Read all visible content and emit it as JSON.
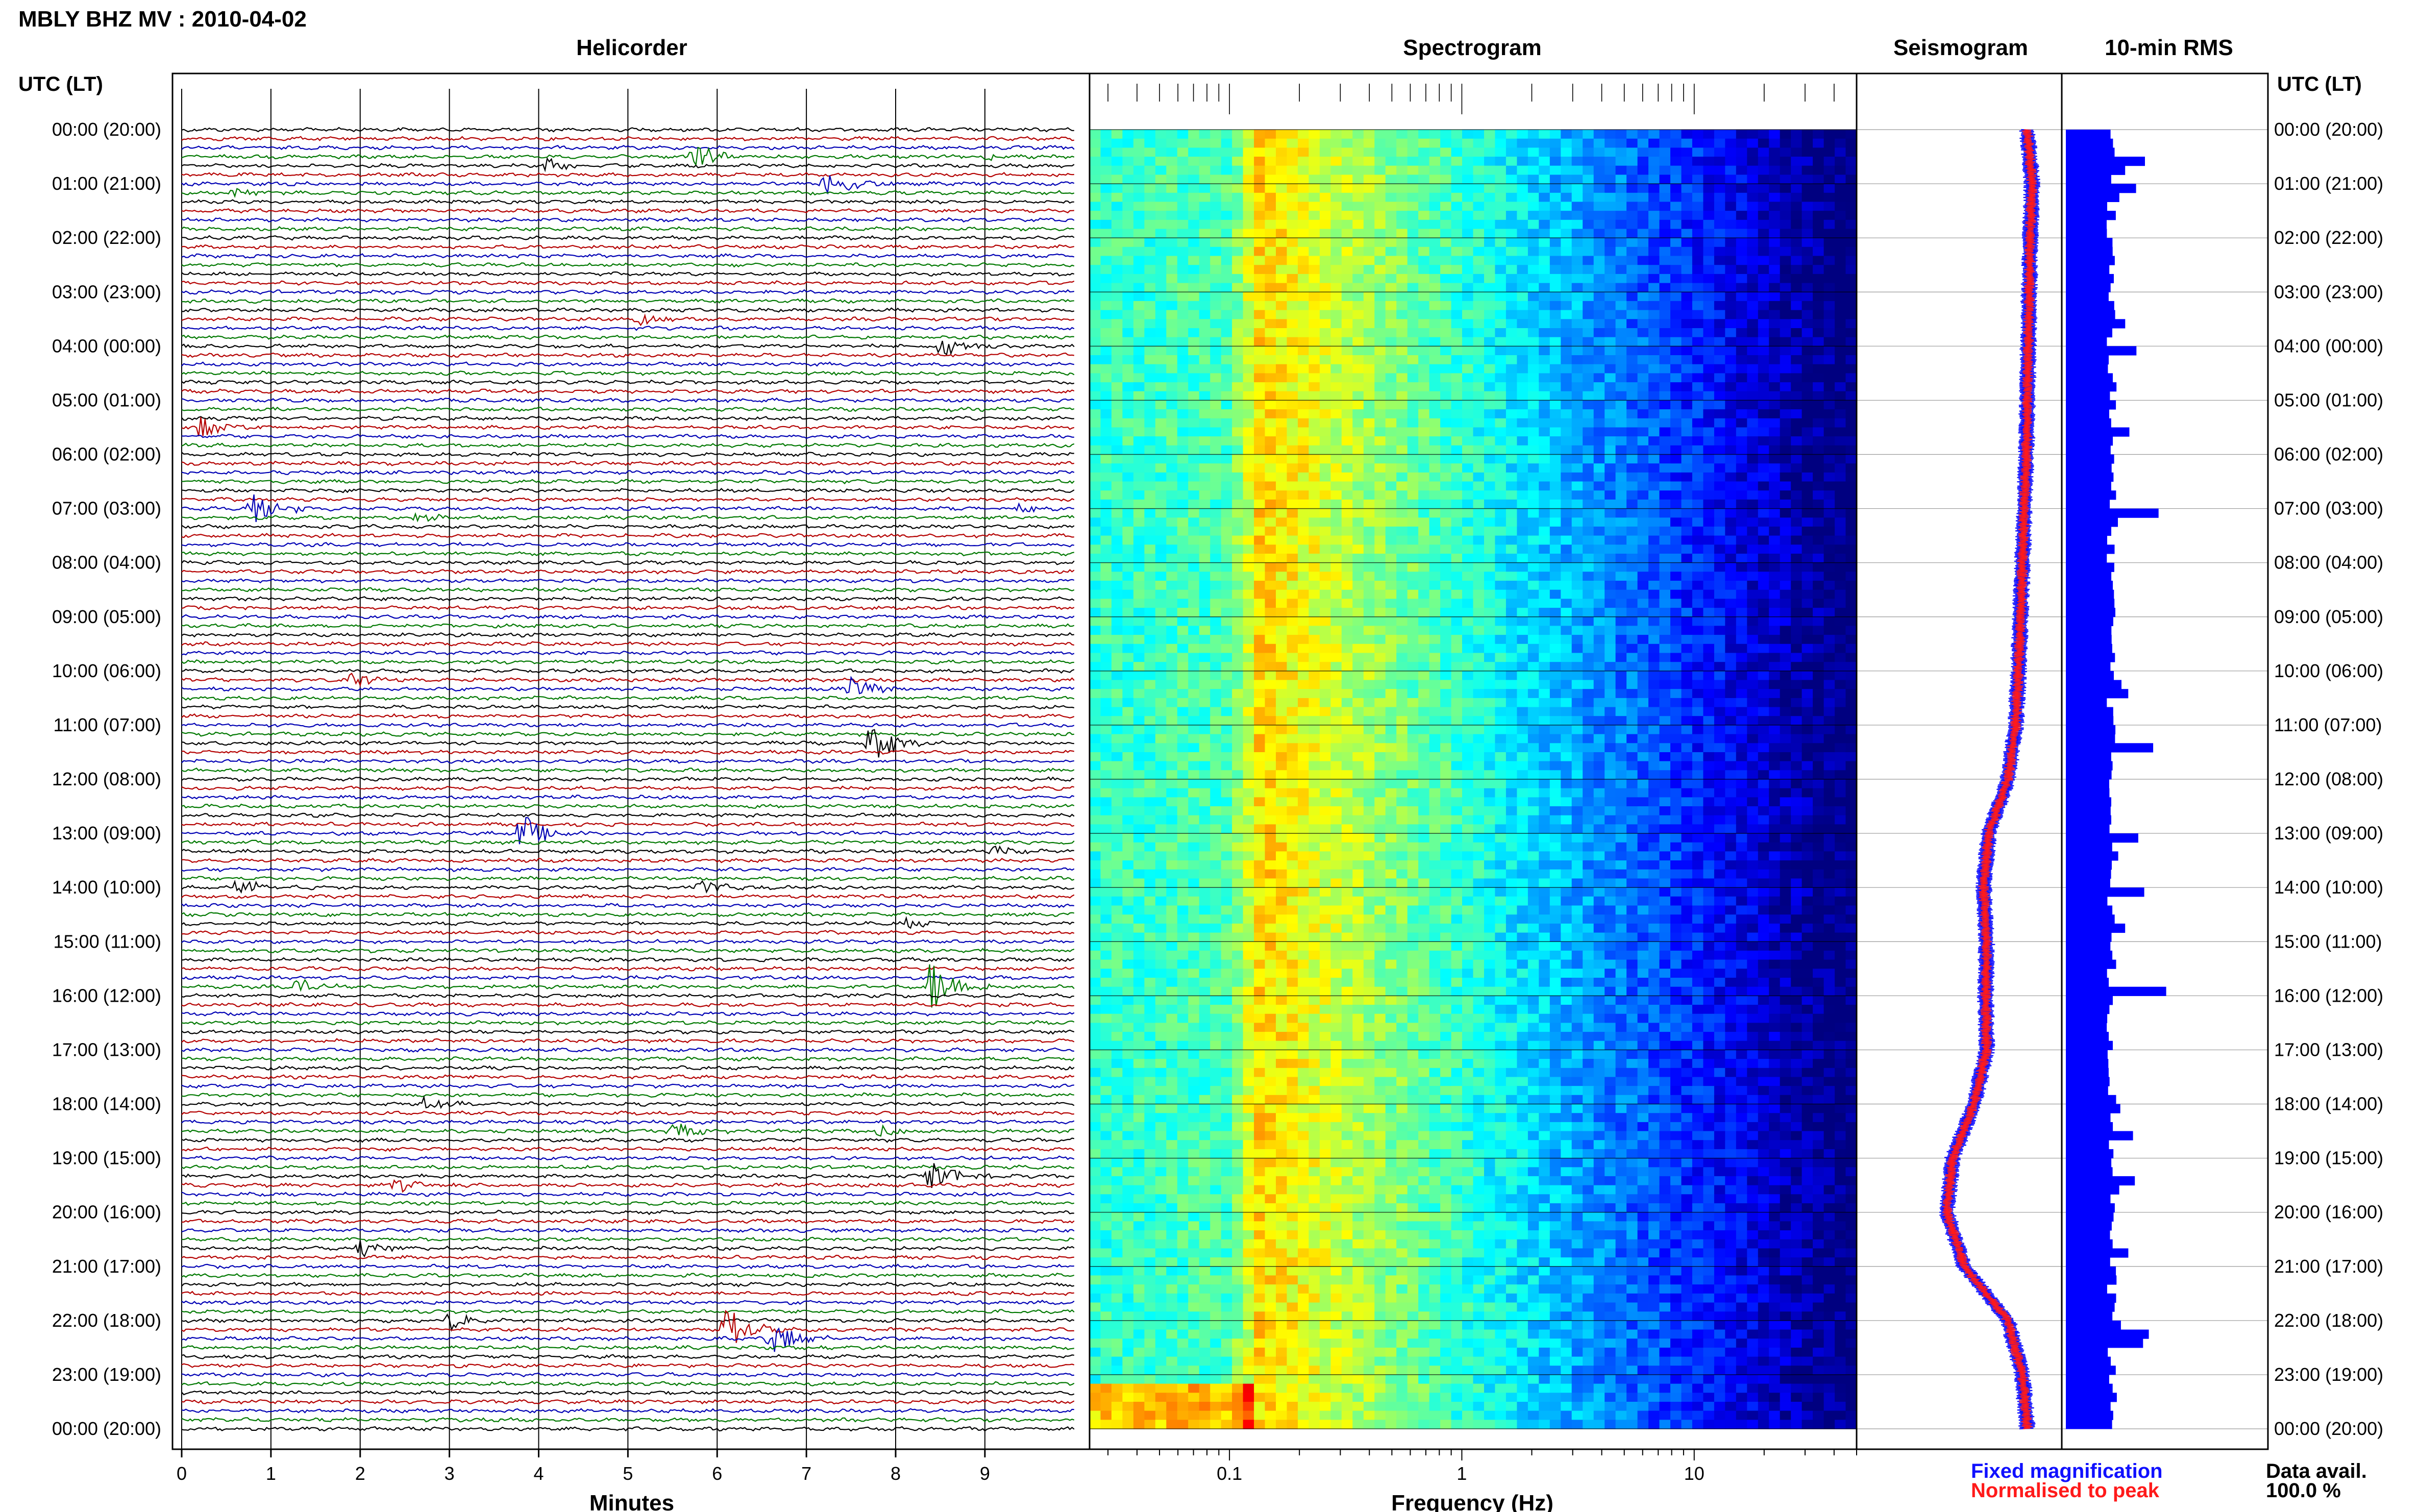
{
  "chart_data": {
    "type": "line",
    "title": "MBLY BHZ MV : 2010-04-02",
    "time_axis": {
      "label_left": "UTC (LT)",
      "label_right": "UTC (LT)",
      "labels": [
        "00:00 (20:00)",
        "01:00 (21:00)",
        "02:00 (22:00)",
        "03:00 (23:00)",
        "04:00 (00:00)",
        "05:00 (01:00)",
        "06:00 (02:00)",
        "07:00 (03:00)",
        "08:00 (04:00)",
        "09:00 (05:00)",
        "10:00 (06:00)",
        "11:00 (07:00)",
        "12:00 (08:00)",
        "13:00 (09:00)",
        "14:00 (10:00)",
        "15:00 (11:00)",
        "16:00 (12:00)",
        "17:00 (13:00)",
        "18:00 (14:00)",
        "19:00 (15:00)",
        "20:00 (16:00)",
        "21:00 (17:00)",
        "22:00 (18:00)",
        "23:00 (19:00)",
        "00:00 (20:00)"
      ]
    },
    "panels": {
      "helicorder": {
        "title": "Helicorder",
        "xlabel": "Minutes",
        "xticks": [
          "0",
          "1",
          "2",
          "3",
          "4",
          "5",
          "6",
          "7",
          "8",
          "9"
        ],
        "xlim": [
          0,
          10
        ],
        "rows_per_hour": 6,
        "trace_colors": [
          "#000000",
          "#b40000",
          "#0000b4",
          "#007800"
        ],
        "events": [
          {
            "hour": 0,
            "row": 3,
            "minute": 5.7,
            "amp": 0.9
          },
          {
            "hour": 0,
            "row": 3,
            "minute": 9.0,
            "amp": 0.2
          },
          {
            "hour": 0,
            "row": 4,
            "minute": 4.1,
            "amp": 0.35
          },
          {
            "hour": 1,
            "row": 0,
            "minute": 7.2,
            "amp": 1.0
          },
          {
            "hour": 1,
            "row": 1,
            "minute": 0.6,
            "amp": 0.3
          },
          {
            "hour": 3,
            "row": 3,
            "minute": 5.1,
            "amp": 0.5
          },
          {
            "hour": 4,
            "row": 0,
            "minute": 8.5,
            "amp": 0.7
          },
          {
            "hour": 5,
            "row": 3,
            "minute": 0.2,
            "amp": 0.6
          },
          {
            "hour": 7,
            "row": 0,
            "minute": 0.8,
            "amp": 1.1
          },
          {
            "hour": 7,
            "row": 0,
            "minute": 9.4,
            "amp": 0.4
          },
          {
            "hour": 7,
            "row": 1,
            "minute": 2.6,
            "amp": 0.3
          },
          {
            "hour": 10,
            "row": 1,
            "minute": 1.9,
            "amp": 0.5
          },
          {
            "hour": 10,
            "row": 2,
            "minute": 7.5,
            "amp": 0.6
          },
          {
            "hour": 11,
            "row": 2,
            "minute": 7.7,
            "amp": 1.3
          },
          {
            "hour": 13,
            "row": 0,
            "minute": 3.8,
            "amp": 1.1
          },
          {
            "hour": 13,
            "row": 2,
            "minute": 9.1,
            "amp": 0.4
          },
          {
            "hour": 14,
            "row": 0,
            "minute": 5.8,
            "amp": 0.5
          },
          {
            "hour": 14,
            "row": 0,
            "minute": 0.6,
            "amp": 0.5
          },
          {
            "hour": 14,
            "row": 4,
            "minute": 8.1,
            "amp": 0.35
          },
          {
            "hour": 15,
            "row": 5,
            "minute": 1.3,
            "amp": 0.4
          },
          {
            "hour": 15,
            "row": 5,
            "minute": 8.4,
            "amp": 1.6
          },
          {
            "hour": 18,
            "row": 0,
            "minute": 2.7,
            "amp": 0.4
          },
          {
            "hour": 18,
            "row": 3,
            "minute": 5.5,
            "amp": 0.6
          },
          {
            "hour": 18,
            "row": 3,
            "minute": 7.8,
            "amp": 0.3
          },
          {
            "hour": 19,
            "row": 2,
            "minute": 8.4,
            "amp": 0.9
          },
          {
            "hour": 19,
            "row": 3,
            "minute": 2.4,
            "amp": 0.4
          },
          {
            "hour": 20,
            "row": 4,
            "minute": 2.0,
            "amp": 0.55
          },
          {
            "hour": 22,
            "row": 0,
            "minute": 3.0,
            "amp": 0.5
          },
          {
            "hour": 22,
            "row": 1,
            "minute": 6.1,
            "amp": 1.2
          },
          {
            "hour": 22,
            "row": 2,
            "minute": 6.6,
            "amp": 1.0
          }
        ]
      },
      "spectrogram": {
        "title": "Spectrogram",
        "xlabel": "Frequency (Hz)",
        "xscale": "log",
        "xlim": [
          0.025,
          50
        ],
        "xticks": [
          "0.1",
          "1",
          "10"
        ],
        "colormap": "jet"
      },
      "seismogram": {
        "title": "Seismogram",
        "legend": [
          {
            "label": "Fixed magnification",
            "color": "#1010ff"
          },
          {
            "label": "Normalised to peak",
            "color": "#ff1a1a"
          }
        ],
        "envelope_hourly": [
          0.55,
          0.6,
          0.58,
          0.57,
          0.56,
          0.55,
          0.54,
          0.52,
          0.5,
          0.48,
          0.46,
          0.43,
          0.35,
          0.15,
          0.1,
          0.13,
          0.12,
          0.13,
          0.0,
          -0.22,
          -0.28,
          -0.1,
          0.35,
          0.5,
          0.55
        ]
      },
      "rms": {
        "title": "10-min RMS",
        "color": "#0000ff",
        "data_avail_label": "Data avail.",
        "data_avail_value": "100.0 %"
      }
    }
  }
}
